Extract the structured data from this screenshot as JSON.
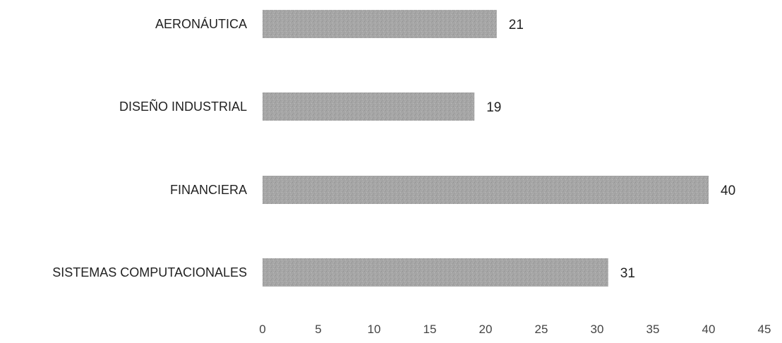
{
  "chart_data": {
    "type": "bar",
    "orientation": "horizontal",
    "categories": [
      "AERONÁUTICA",
      "DISEÑO INDUSTRIAL",
      "FINANCIERA",
      "SISTEMAS COMPUTACIONALES"
    ],
    "values": [
      21,
      19,
      40,
      31
    ],
    "xlim": [
      0,
      45
    ],
    "xticks": [
      0,
      5,
      10,
      15,
      20,
      25,
      30,
      35,
      40,
      45
    ],
    "grid": false,
    "legend": "none",
    "bar_color": "#a6a6a6"
  }
}
